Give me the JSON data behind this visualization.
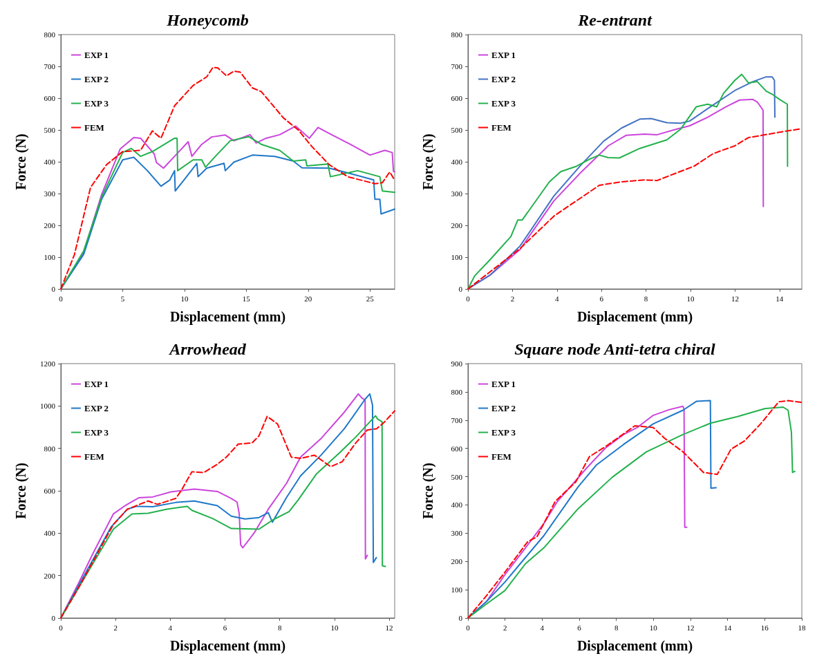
{
  "chart_data": [
    {
      "type": "line",
      "title": "Honeycomb",
      "xlabel": "Displacement (mm)",
      "ylabel": "Force (N)",
      "xlim": [
        0,
        27
      ],
      "xticks": [
        0,
        5,
        10,
        15,
        20,
        25
      ],
      "ylim": [
        0,
        800
      ],
      "yticks": [
        0,
        100,
        200,
        300,
        400,
        500,
        600,
        700,
        800
      ],
      "grid": false,
      "legend": "top left",
      "marker": "none",
      "series": [
        {
          "name": "EXP 1",
          "color": "#cc44dd",
          "x": [
            0,
            1.84,
            3.3,
            4.8,
            5.9,
            6.45,
            7.55,
            7.73,
            8.3,
            9.2,
            10.3,
            10.6,
            11.4,
            12.2,
            13.3,
            14,
            15.3,
            15.8,
            16.6,
            17.7,
            19,
            20.1,
            20.8,
            21.9,
            23.4,
            25,
            26.2,
            26.8,
            26.9,
            27
          ],
          "values": [
            0,
            115,
            297,
            440,
            476,
            474,
            425,
            398,
            380,
            417,
            463,
            417,
            455,
            478,
            484,
            466,
            485,
            459,
            474,
            485,
            512,
            474,
            508,
            485,
            455,
            421,
            436,
            429,
            370,
            368
          ]
        },
        {
          "name": "EXP 2",
          "color": "#1f77c8",
          "x": [
            0,
            1.84,
            3.3,
            5,
            5.9,
            7,
            8.1,
            8.8,
            9.2,
            9.25,
            9.95,
            11,
            11.1,
            11.8,
            13.2,
            13.3,
            14,
            15.5,
            17.3,
            18.8,
            19.5,
            21.7,
            23.6,
            25.3,
            25.4,
            25.8,
            25.9,
            27
          ],
          "values": [
            0,
            108,
            282,
            406,
            414,
            372,
            323,
            342,
            372,
            308,
            342,
            395,
            353,
            380,
            395,
            372,
            399,
            421,
            417,
            402,
            381,
            380,
            361,
            343,
            282,
            282,
            236,
            251
          ]
        },
        {
          "name": "EXP 3",
          "color": "#22b14c",
          "x": [
            0,
            1.84,
            3.3,
            5,
            5.7,
            6.45,
            7.4,
            9.2,
            9.4,
            9.45,
            10.7,
            11.4,
            11.7,
            12.5,
            13.7,
            15.2,
            16.2,
            17.7,
            18.8,
            19.8,
            19.9,
            21.6,
            21.8,
            24,
            25.8,
            26,
            27
          ],
          "values": [
            0,
            119,
            289,
            429,
            442,
            417,
            432,
            474,
            474,
            372,
            406,
            406,
            383,
            417,
            466,
            479,
            455,
            436,
            402,
            406,
            387,
            393,
            353,
            372,
            353,
            308,
            304
          ]
        },
        {
          "name": "FEM",
          "color": "#ff0000",
          "line_style": "dashed",
          "x": [
            0,
            1.1,
            2.4,
            3.7,
            5,
            6.45,
            7.4,
            8.1,
            9.2,
            10.7,
            11.8,
            12.3,
            12.7,
            13.4,
            14,
            14.5,
            15.5,
            16.2,
            18,
            19.2,
            20.3,
            21.7,
            23.2,
            25.4,
            26,
            26.6,
            27
          ],
          "values": [
            0,
            108,
            319,
            391,
            432,
            436,
            497,
            474,
            576,
            640,
            667,
            697,
            695,
            670,
            685,
            682,
            632,
            621,
            538,
            500,
            448,
            391,
            353,
            331,
            334,
            368,
            342
          ]
        }
      ]
    },
    {
      "type": "line",
      "title": "Re-entrant",
      "xlabel": "Displacement (mm)",
      "ylabel": "Force (N)",
      "xlim": [
        0,
        15
      ],
      "xticks": [
        0,
        2,
        4,
        6,
        8,
        10,
        12,
        14
      ],
      "ylim": [
        0,
        800
      ],
      "yticks": [
        0,
        100,
        200,
        300,
        400,
        500,
        600,
        700,
        800
      ],
      "grid": false,
      "legend": "top left",
      "marker": "none",
      "series": [
        {
          "name": "EXP 1",
          "color": "#cc44dd",
          "x": [
            0,
            1.02,
            2.34,
            3.86,
            5.08,
            6.3,
            7.1,
            7.93,
            8.5,
            9.35,
            9.96,
            10.77,
            11.6,
            12.2,
            12.8,
            13.0,
            13.26,
            13.27
          ],
          "values": [
            0,
            45,
            124,
            277,
            367,
            450,
            483,
            487,
            485,
            502,
            513,
            540,
            573,
            594,
            596,
            588,
            562,
            259
          ]
        },
        {
          "name": "EXP 2",
          "color": "#4472c4",
          "x": [
            0,
            1.02,
            2.34,
            3.86,
            5.08,
            6.1,
            6.9,
            7.72,
            8.23,
            8.94,
            9.55,
            9.96,
            10.98,
            11.99,
            12.8,
            13.4,
            13.67,
            13.77,
            13.79
          ],
          "values": [
            0,
            45,
            135,
            292,
            390,
            465,
            506,
            534,
            536,
            523,
            521,
            528,
            577,
            624,
            652,
            667,
            667,
            656,
            540
          ]
        },
        {
          "name": "EXP 3",
          "color": "#22b14c",
          "x": [
            0,
            0.3,
            1.02,
            1.93,
            2.24,
            2.44,
            3.66,
            4.17,
            4.88,
            5.49,
            5.9,
            6.3,
            6.8,
            7.72,
            8.94,
            9.55,
            10.26,
            10.77,
            11.18,
            11.48,
            11.99,
            12.3,
            12.6,
            13.0,
            13.4,
            13.7,
            14.0,
            14.35,
            14.36
          ],
          "values": [
            0,
            41,
            94,
            165,
            217,
            217,
            337,
            369,
            386,
            409,
            421,
            413,
            412,
            442,
            469,
            502,
            573,
            581,
            573,
            615,
            656,
            675,
            648,
            652,
            622,
            611,
            596,
            581,
            386
          ]
        },
        {
          "name": "FEM",
          "color": "#ff0000",
          "line_style": "dashed",
          "x": [
            0,
            2.34,
            3.86,
            5.9,
            6.9,
            7.93,
            8.5,
            9.45,
            10.16,
            10.98,
            11.38,
            11.99,
            12.6,
            13.2,
            14.0,
            15.0
          ],
          "values": [
            0,
            127,
            229,
            326,
            337,
            343,
            341,
            367,
            386,
            424,
            435,
            450,
            476,
            483,
            493,
            504
          ]
        }
      ]
    },
    {
      "type": "line",
      "title": "Arrowhead",
      "xlabel": "Displacement (mm)",
      "ylabel": "Force (N)",
      "xlim": [
        0,
        12.2
      ],
      "xticks": [
        0,
        2,
        4,
        6,
        8,
        10,
        12
      ],
      "ylim": [
        0,
        1200
      ],
      "yticks": [
        0,
        200,
        400,
        600,
        800,
        1000,
        1200
      ],
      "grid": false,
      "legend": "top left",
      "marker": "none",
      "series": [
        {
          "name": "EXP 1",
          "color": "#cc44dd",
          "x": [
            0,
            0.66,
            1.16,
            1.92,
            2.35,
            2.85,
            3.36,
            4.03,
            4.88,
            5.72,
            6.23,
            6.44,
            6.52,
            6.57,
            6.65,
            7.07,
            7.58,
            8.25,
            8.76,
            9.52,
            10.36,
            10.87,
            11.0,
            11.12,
            11.13,
            11.2
          ],
          "values": [
            0,
            167,
            301,
            491,
            530,
            567,
            571,
            595,
            608,
            597,
            564,
            547,
            491,
            346,
            331,
            402,
            513,
            636,
            759,
            848,
            971,
            1057,
            1038,
            1027,
            279,
            296
          ]
        },
        {
          "name": "EXP 2",
          "color": "#1f77c8",
          "x": [
            0,
            0.66,
            1.84,
            2.43,
            2.77,
            3.36,
            4.2,
            4.88,
            5.72,
            6.23,
            6.73,
            7.24,
            7.58,
            7.73,
            8.25,
            8.76,
            9.52,
            10.36,
            11.12,
            11.29,
            11.39,
            11.42,
            11.53
          ],
          "values": [
            0,
            156,
            430,
            513,
            527,
            525,
            545,
            552,
            530,
            480,
            467,
            474,
            497,
            452,
            569,
            670,
            770,
            893,
            1032,
            1057,
            1004,
            262,
            285
          ]
        },
        {
          "name": "EXP 3",
          "color": "#22b14c",
          "x": [
            0,
            0.66,
            1.92,
            2.6,
            3.19,
            3.86,
            4.62,
            4.79,
            5.55,
            6.23,
            7.24,
            7.75,
            8.34,
            8.68,
            9.35,
            10.2,
            10.78,
            11.5,
            11.58,
            11.74,
            11.75,
            11.86
          ],
          "values": [
            0,
            145,
            419,
            491,
            494,
            513,
            527,
            508,
            469,
            422,
            419,
            463,
            502,
            558,
            681,
            781,
            854,
            954,
            938,
            926,
            246,
            243
          ]
        },
        {
          "name": "FEM",
          "color": "#ff0000",
          "line_style": "dashed",
          "x": [
            0,
            0.66,
            1.92,
            2.43,
            3.19,
            3.53,
            4.2,
            4.41,
            4.79,
            5.22,
            5.72,
            6.05,
            6.48,
            6.99,
            7.24,
            7.54,
            7.92,
            8.42,
            8.76,
            9.27,
            9.86,
            10.28,
            10.78,
            11.2,
            11.54,
            11.8,
            12.2
          ],
          "values": [
            0,
            145,
            441,
            513,
            552,
            536,
            564,
            603,
            690,
            686,
            725,
            759,
            820,
            826,
            859,
            951,
            915,
            759,
            753,
            768,
            714,
            737,
            826,
            887,
            893,
            921,
            977
          ]
        }
      ]
    },
    {
      "type": "line",
      "title": "Square node Anti-tetra chiral",
      "xlabel": "Displacement (mm)",
      "ylabel": "Force (N)",
      "xlim": [
        0,
        18
      ],
      "xticks": [
        0,
        2,
        4,
        6,
        8,
        10,
        12,
        14,
        16,
        18
      ],
      "ylim": [
        0,
        900
      ],
      "yticks": [
        0,
        100,
        200,
        300,
        400,
        500,
        600,
        700,
        800,
        900
      ],
      "grid": false,
      "legend": "top left",
      "marker": "none",
      "series": [
        {
          "name": "EXP 1",
          "color": "#cc44dd",
          "x": [
            0,
            1.01,
            1.99,
            3.1,
            4.09,
            4.82,
            6.42,
            7.41,
            8.39,
            9.13,
            9.99,
            10.85,
            11.59,
            11.65,
            11.69,
            11.8
          ],
          "values": [
            0,
            59,
            153,
            248,
            334,
            412,
            532,
            601,
            649,
            674,
            717,
            737,
            749,
            739,
            321,
            321
          ]
        },
        {
          "name": "EXP 2",
          "color": "#1f77c8",
          "x": [
            0,
            1.01,
            1.99,
            3.1,
            4.09,
            5.93,
            6.92,
            8.39,
            9.99,
            11.59,
            12.33,
            13.07,
            13.1,
            13.38
          ],
          "values": [
            0,
            59,
            127,
            214,
            291,
            463,
            541,
            614,
            687,
            735,
            767,
            769,
            459,
            461
          ]
        },
        {
          "name": "EXP 3",
          "color": "#22b14c",
          "x": [
            0,
            1.01,
            1.99,
            3.1,
            4.09,
            5.93,
            7.78,
            9.62,
            11.59,
            13.07,
            14.55,
            16.02,
            17.0,
            17.26,
            17.44,
            17.5,
            17.62
          ],
          "values": [
            0,
            50,
            97,
            192,
            248,
            386,
            498,
            588,
            649,
            689,
            713,
            741,
            746,
            735,
            657,
            515,
            519
          ]
        },
        {
          "name": "FEM",
          "color": "#ff0000",
          "line_style": "dashed",
          "x": [
            0,
            1.01,
            1.99,
            3.22,
            3.72,
            4.7,
            5.81,
            6.55,
            7.41,
            9.0,
            9.99,
            10.6,
            11.59,
            12.7,
            13.44,
            14.18,
            14.92,
            15.78,
            16.76,
            17.26,
            17.99
          ],
          "values": [
            0,
            80,
            162,
            270,
            287,
            412,
            481,
            571,
            606,
            680,
            674,
            636,
            588,
            515,
            508,
            597,
            627,
            687,
            765,
            769,
            763
          ]
        }
      ]
    }
  ]
}
